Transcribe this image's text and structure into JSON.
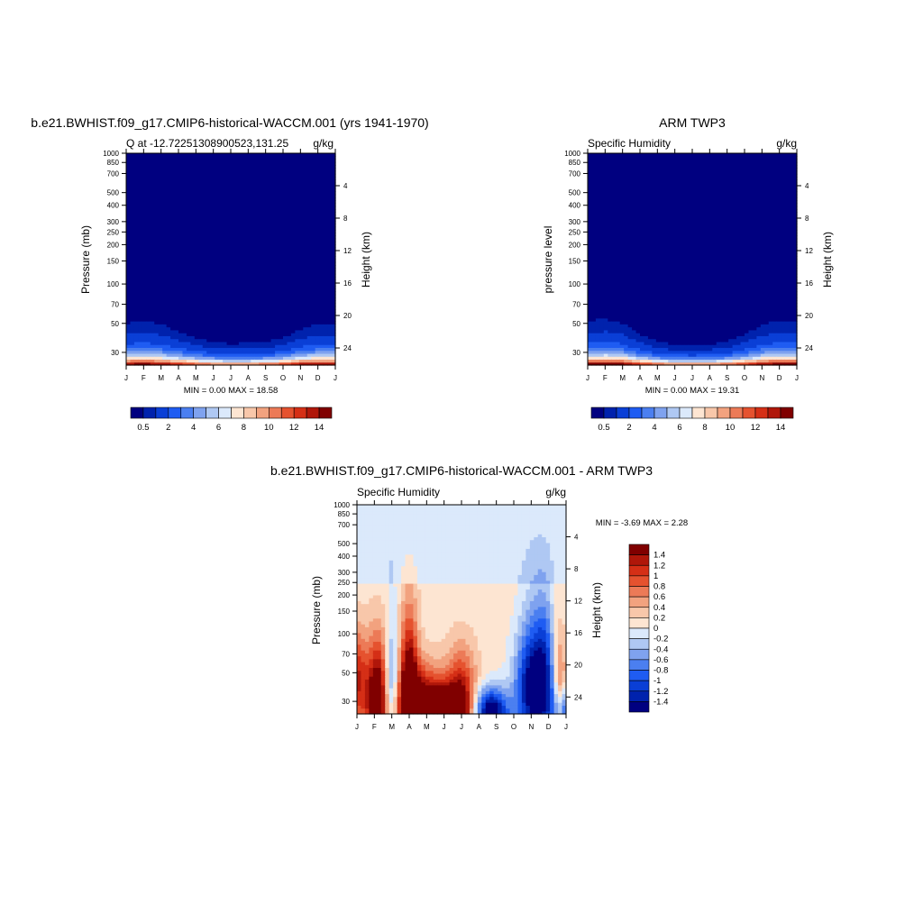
{
  "colors": {
    "cmap_humidity": [
      "#000080",
      "#0022ad",
      "#0a3fd6",
      "#1f5cf2",
      "#4b7ff0",
      "#7fa2ef",
      "#afc8f3",
      "#dbe9fb",
      "#fde5d2",
      "#f8c7aa",
      "#f2a27f",
      "#ec7a57",
      "#e5522f",
      "#d52f16",
      "#b0170a",
      "#800000"
    ],
    "cmap_diff": [
      "#000080",
      "#0022ad",
      "#0a3fd6",
      "#1f5cf2",
      "#4b7ff0",
      "#7fa2ef",
      "#afc8f3",
      "#dbe9fb",
      "#fde5d2",
      "#f8c7aa",
      "#f2a27f",
      "#ec7a57",
      "#e5522f",
      "#d52f16",
      "#b0170a",
      "#800000"
    ]
  },
  "chart_data": [
    {
      "type": "heatmap",
      "id": "model",
      "title": "b.e21.BWHIST.f09_g17.CMIP6-historical-WACCM.001 (yrs 1941-1970)",
      "subtitle_left": "Q at -12.72251308900523,131.25",
      "subtitle_right": "g/kg",
      "xlabel": "",
      "ylabel": "Pressure (mb)",
      "ylabel_right": "Height (km)",
      "x_ticks": [
        "J",
        "F",
        "M",
        "A",
        "M",
        "J",
        "J",
        "A",
        "S",
        "O",
        "N",
        "D",
        "J"
      ],
      "y_ticks": [
        30,
        50,
        70,
        100,
        150,
        200,
        250,
        300,
        400,
        500,
        700,
        850,
        1000
      ],
      "y_scale": "log",
      "ylim": [
        1000,
        24
      ],
      "height_ticks": [
        24,
        20,
        16,
        12,
        8,
        4
      ],
      "stats": "MIN =   0.00 MAX =  18.58",
      "min": 0.0,
      "max": 18.58,
      "colorbar": {
        "labels": [
          "0.5",
          "2",
          "4",
          "6",
          "8",
          "10",
          "12",
          "14"
        ],
        "placement": "bottom"
      },
      "levels": [
        0.5,
        1,
        2,
        3,
        4,
        5,
        6,
        7,
        8,
        9,
        10,
        11,
        12,
        13,
        14
      ],
      "field": {
        "surface_q": [
          16.3,
          16.8,
          16.0,
          15.0,
          13.6,
          12.6,
          12.1,
          12.5,
          13.0,
          14.0,
          15.8,
          16.6,
          16.3
        ],
        "scale_height_hpa": [
          150,
          155,
          150,
          132,
          116,
          106,
          100,
          101,
          104,
          116,
          136,
          148,
          150
        ]
      }
    },
    {
      "type": "heatmap",
      "id": "obs",
      "title": "ARM TWP3",
      "subtitle_left": "Specific Humidity",
      "subtitle_right": "g/kg",
      "xlabel": "",
      "ylabel": "pressure level",
      "ylabel_right": "Height (km)",
      "x_ticks": [
        "J",
        "F",
        "M",
        "A",
        "M",
        "J",
        "J",
        "A",
        "S",
        "O",
        "N",
        "D",
        "J"
      ],
      "y_ticks": [
        30,
        50,
        70,
        100,
        150,
        200,
        250,
        300,
        400,
        500,
        700,
        850,
        1000
      ],
      "y_scale": "log",
      "ylim": [
        1000,
        24
      ],
      "height_ticks": [
        24,
        20,
        16,
        12,
        8,
        4
      ],
      "stats": "MIN =   0.00 MAX =  19.31",
      "min": 0.0,
      "max": 19.31,
      "colorbar": {
        "labels": [
          "0.5",
          "2",
          "4",
          "6",
          "8",
          "10",
          "12",
          "14"
        ],
        "placement": "bottom"
      },
      "levels": [
        0.5,
        1,
        2,
        3,
        4,
        5,
        6,
        7,
        8,
        9,
        10,
        11,
        12,
        13,
        14
      ],
      "field": {
        "surface_q": [
          16.6,
          17.3,
          16.6,
          14.8,
          13.3,
          12.4,
          11.9,
          12.4,
          13.2,
          14.4,
          16.0,
          16.9,
          16.6
        ],
        "scale_height_hpa": [
          155,
          158,
          150,
          122,
          105,
          95,
          92,
          96,
          105,
          125,
          148,
          155,
          155
        ]
      }
    },
    {
      "type": "heatmap",
      "id": "diff",
      "title": "b.e21.BWHIST.f09_g17.CMIP6-historical-WACCM.001 - ARM TWP3",
      "subtitle_left": "Specific Humidity",
      "subtitle_right": "g/kg",
      "xlabel": "",
      "ylabel": "Pressure (mb)",
      "ylabel_right": "Height (km)",
      "x_ticks": [
        "J",
        "F",
        "M",
        "A",
        "M",
        "J",
        "J",
        "A",
        "S",
        "O",
        "N",
        "D",
        "J"
      ],
      "y_ticks": [
        30,
        50,
        70,
        100,
        150,
        200,
        250,
        300,
        400,
        500,
        700,
        850,
        1000
      ],
      "y_scale": "log",
      "ylim": [
        1000,
        24
      ],
      "height_ticks": [
        24,
        20,
        16,
        12,
        8,
        4
      ],
      "stats": "MIN =  -3.69 MAX =   2.28",
      "min": -3.69,
      "max": 2.28,
      "colorbar": {
        "labels": [
          "1.4",
          "1.2",
          "1",
          "0.8",
          "0.6",
          "0.4",
          "0.2",
          "0",
          "-0.2",
          "-0.4",
          "-0.6",
          "-0.8",
          "-1",
          "-1.2",
          "-1.4"
        ],
        "placement": "right"
      },
      "levels": [
        -1.4,
        -1.2,
        -1,
        -0.8,
        -0.6,
        -0.4,
        -0.2,
        0,
        0.2,
        0.4,
        0.6,
        0.8,
        1,
        1.2,
        1.4
      ],
      "field": {
        "upper_value": -0.1,
        "mid_value": 0.1,
        "blobs": [
          {
            "t": 0.0,
            "p": 500,
            "a": 1.0,
            "st": 0.03,
            "sp": 0.06
          },
          {
            "t": 0.1,
            "p": 520,
            "a": 1.0,
            "st": 0.04,
            "sp": 0.07
          },
          {
            "t": 0.16,
            "p": 700,
            "a": -1.1,
            "st": 0.03,
            "sp": 0.05
          },
          {
            "t": 0.165,
            "p": 330,
            "a": -0.4,
            "st": 0.02,
            "sp": 0.1
          },
          {
            "t": 0.1,
            "p": 860,
            "a": 1.0,
            "st": 0.05,
            "sp": 0.05
          },
          {
            "t": 0.25,
            "p": 560,
            "a": 1.4,
            "st": 0.03,
            "sp": 0.1
          },
          {
            "t": 0.3,
            "p": 860,
            "a": 1.6,
            "st": 0.09,
            "sp": 0.05
          },
          {
            "t": 0.43,
            "p": 950,
            "a": 1.6,
            "st": 0.07,
            "sp": 0.03
          },
          {
            "t": 0.5,
            "p": 700,
            "a": 1.1,
            "st": 0.05,
            "sp": 0.06
          },
          {
            "t": 0.64,
            "p": 950,
            "a": -1.8,
            "st": 0.06,
            "sp": 0.03
          },
          {
            "t": 0.84,
            "p": 650,
            "a": -1.5,
            "st": 0.06,
            "sp": 0.07
          },
          {
            "t": 0.9,
            "p": 420,
            "a": -0.6,
            "st": 0.03,
            "sp": 0.1
          },
          {
            "t": 0.85,
            "p": 260,
            "a": -0.45,
            "st": 0.05,
            "sp": 0.1
          },
          {
            "t": 0.97,
            "p": 620,
            "a": 0.8,
            "st": 0.02,
            "sp": 0.07
          },
          {
            "t": 1.0,
            "p": 930,
            "a": -1.1,
            "st": 0.05,
            "sp": 0.03
          }
        ]
      }
    }
  ]
}
